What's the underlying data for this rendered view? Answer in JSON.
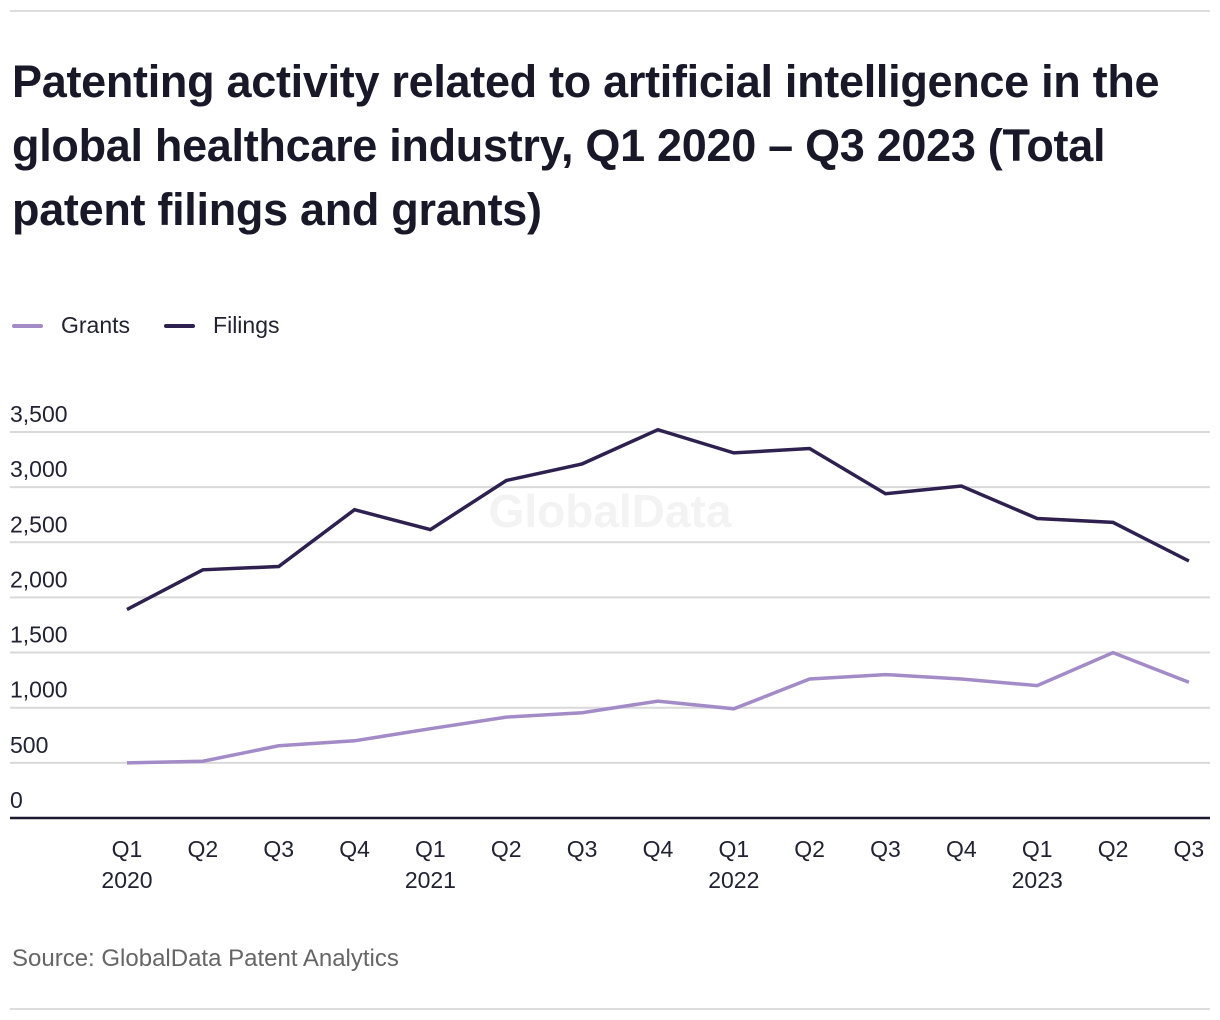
{
  "header": {
    "title": "Patenting activity related to artificial intelligence in the global healthcare industry, Q1 2020 – Q3 2023 (Total patent filings and grants)"
  },
  "legend": {
    "items": [
      {
        "label": "Grants",
        "color": "#a38bc8"
      },
      {
        "label": "Filings",
        "color": "#2e2150"
      }
    ]
  },
  "watermark": "GlobalData",
  "footer": {
    "source": "Source: GlobalData Patent Analytics"
  },
  "chart_data": {
    "type": "line",
    "title": "Patenting activity related to artificial intelligence in the global healthcare industry, Q1 2020 – Q3 2023 (Total patent filings and grants)",
    "xlabel": "",
    "ylabel": "",
    "categories": [
      "Q1 2020",
      "Q2 2020",
      "Q3 2020",
      "Q4 2020",
      "Q1 2021",
      "Q2 2021",
      "Q3 2021",
      "Q4 2021",
      "Q1 2022",
      "Q2 2022",
      "Q3 2022",
      "Q4 2022",
      "Q1 2023",
      "Q2 2023",
      "Q3 2023"
    ],
    "x_tick_labels": [
      {
        "quarter": "Q1",
        "year": "2020"
      },
      {
        "quarter": "Q2",
        "year": ""
      },
      {
        "quarter": "Q3",
        "year": ""
      },
      {
        "quarter": "Q4",
        "year": ""
      },
      {
        "quarter": "Q1",
        "year": "2021"
      },
      {
        "quarter": "Q2",
        "year": ""
      },
      {
        "quarter": "Q3",
        "year": ""
      },
      {
        "quarter": "Q4",
        "year": ""
      },
      {
        "quarter": "Q1",
        "year": "2022"
      },
      {
        "quarter": "Q2",
        "year": ""
      },
      {
        "quarter": "Q3",
        "year": ""
      },
      {
        "quarter": "Q4",
        "year": ""
      },
      {
        "quarter": "Q1",
        "year": "2023"
      },
      {
        "quarter": "Q2",
        "year": ""
      },
      {
        "quarter": "Q3",
        "year": ""
      }
    ],
    "y_ticks": [
      0,
      500,
      1000,
      1500,
      2000,
      2500,
      3000,
      3500
    ],
    "y_tick_labels": [
      "0",
      "500",
      "1,000",
      "1,500",
      "2,000",
      "2,500",
      "3,000",
      "3,500"
    ],
    "ylim": [
      0,
      3500
    ],
    "grid": true,
    "legend_position": "top-left",
    "series": [
      {
        "name": "Grants",
        "color": "#a38bc8",
        "values": [
          500,
          515,
          655,
          700,
          810,
          915,
          955,
          1060,
          990,
          1260,
          1300,
          1260,
          1200,
          1500,
          1230
        ]
      },
      {
        "name": "Filings",
        "color": "#2e2150",
        "values": [
          1890,
          2250,
          2280,
          2795,
          2615,
          3060,
          3210,
          3520,
          3310,
          3350,
          2940,
          3010,
          2715,
          2680,
          2330
        ]
      }
    ]
  }
}
